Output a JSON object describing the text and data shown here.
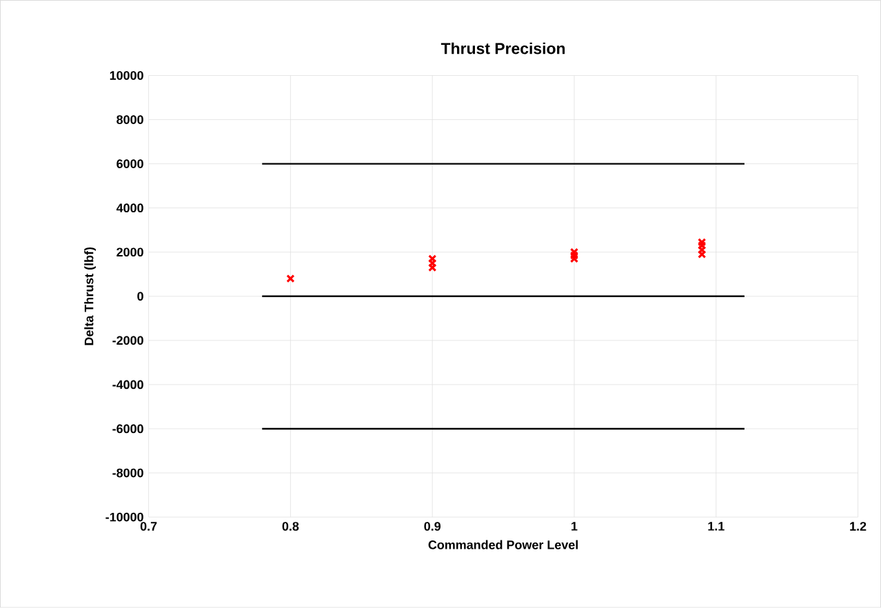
{
  "chart_data": {
    "type": "scatter",
    "title": "Thrust Precision",
    "xlabel": "Commanded Power Level",
    "ylabel": "Delta Thrust (lbf)",
    "xlim": [
      0.7,
      1.2
    ],
    "xticks": [
      0.7,
      0.8,
      0.9,
      1,
      1.1,
      1.2
    ],
    "ylim": [
      -10000,
      10000
    ],
    "yticks": [
      -10000,
      -8000,
      -6000,
      -4000,
      -2000,
      0,
      2000,
      4000,
      6000,
      8000,
      10000
    ],
    "grid": true,
    "marker": "cross",
    "series": [
      {
        "color": "#ff0000",
        "x": [
          0.8,
          0.9,
          0.9,
          0.9,
          1,
          1,
          1,
          1.09,
          1.09,
          1.09,
          1.09
        ],
        "values": [
          800,
          1700,
          1500,
          1300,
          2000,
          1850,
          1700,
          2450,
          2300,
          2100,
          1900
        ]
      },
      {
        "type": "line",
        "color": "#000000",
        "marker": "none",
        "x": [
          0.78,
          1.12
        ],
        "values": [
          6000,
          6000
        ]
      },
      {
        "type": "line",
        "color": "#000000",
        "marker": "none",
        "x": [
          0.78,
          1.12
        ],
        "values": [
          0,
          0
        ]
      },
      {
        "type": "line",
        "color": "#000000",
        "marker": "none",
        "x": [
          0.78,
          1.12
        ],
        "values": [
          -6000,
          -6000
        ]
      }
    ]
  }
}
